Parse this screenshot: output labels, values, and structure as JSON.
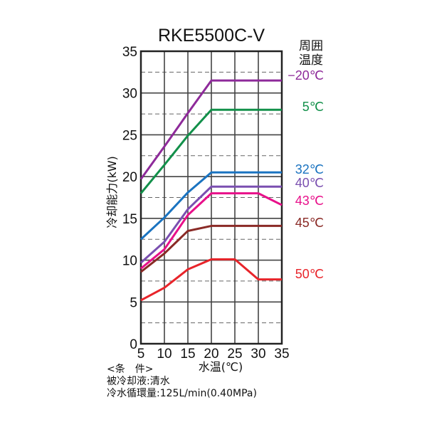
{
  "chart_data": {
    "type": "line",
    "title": "RKE5500C-V",
    "xlabel": "水温(℃)",
    "ylabel": "冷却能力(kW)",
    "legend_title": [
      "周囲",
      "温度"
    ],
    "xlim": [
      5,
      35
    ],
    "ylim": [
      0,
      35
    ],
    "x_ticks": [
      5,
      10,
      15,
      20,
      25,
      30,
      35
    ],
    "y_ticks": [
      0,
      5,
      10,
      15,
      20,
      25,
      30,
      35
    ],
    "grid": true,
    "legend_placement": "right",
    "x": [
      5,
      10,
      15,
      20,
      25,
      30,
      35
    ],
    "series": [
      {
        "name": "−20℃",
        "color": "#8e2a9a",
        "values": [
          19.7,
          23.6,
          27.6,
          31.5,
          31.5,
          31.5,
          31.5
        ]
      },
      {
        "name": "5℃",
        "color": "#12904a",
        "values": [
          18.0,
          21.4,
          24.9,
          28.0,
          28.0,
          28.0,
          28.0
        ]
      },
      {
        "name": "32℃",
        "color": "#1a73c0",
        "values": [
          12.5,
          15.1,
          18.1,
          20.5,
          20.5,
          20.5,
          20.5
        ]
      },
      {
        "name": "40℃",
        "color": "#7a4fb0",
        "values": [
          9.7,
          12.2,
          16.1,
          18.8,
          18.8,
          18.8,
          18.8
        ]
      },
      {
        "name": "43℃",
        "color": "#e8108a",
        "values": [
          9.0,
          11.3,
          15.4,
          18.0,
          18.0,
          18.0,
          16.6
        ]
      },
      {
        "name": "45℃",
        "color": "#8a2a26",
        "values": [
          8.6,
          10.8,
          13.5,
          14.1,
          14.1,
          14.1,
          14.1
        ]
      },
      {
        "name": "50℃",
        "color": "#e8242a",
        "values": [
          5.2,
          6.7,
          8.9,
          10.1,
          10.1,
          7.7,
          7.7
        ]
      }
    ]
  },
  "conditions": {
    "heading": "<条　件>",
    "line1": "被冷却液:清水",
    "line2": "冷水循環量:125L/min(0.40MPa)"
  }
}
